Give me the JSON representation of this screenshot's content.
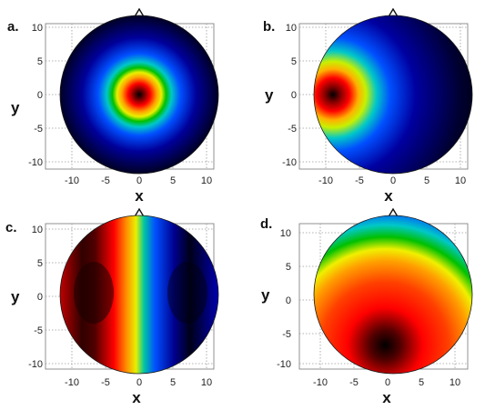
{
  "figure": {
    "xlabel": "x",
    "ylabel": "y",
    "ticks": [
      "-10",
      "-5",
      "0",
      "5",
      "10"
    ],
    "panels": [
      {
        "label": "a.",
        "pattern": "central-focus"
      },
      {
        "label": "b.",
        "pattern": "left-edge-focus"
      },
      {
        "label": "c.",
        "pattern": "lateral-dipole"
      },
      {
        "label": "d.",
        "pattern": "posterior-broad"
      }
    ],
    "colormap": [
      "#000000",
      "#7a0000",
      "#ff0000",
      "#ff7a00",
      "#ffff00",
      "#00c000",
      "#00c8c8",
      "#0050ff",
      "#000090",
      "#000010"
    ]
  }
}
